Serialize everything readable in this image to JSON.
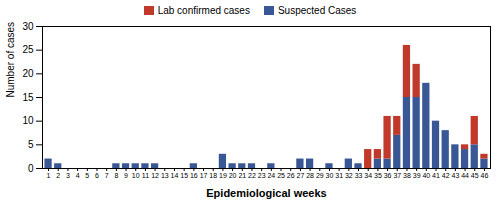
{
  "chart_data": {
    "type": "bar",
    "stacked": true,
    "xlabel": "Epidemiological weeks",
    "ylabel": "Number of cases",
    "categories": [
      "1",
      "2",
      "3",
      "4",
      "5",
      "6",
      "7",
      "8",
      "9",
      "10",
      "11",
      "12",
      "13",
      "14",
      "15",
      "16",
      "17",
      "18",
      "19",
      "20",
      "21",
      "22",
      "23",
      "24",
      "25",
      "26",
      "27",
      "28",
      "29",
      "30",
      "31",
      "32",
      "33",
      "34",
      "35",
      "36",
      "37",
      "38",
      "39",
      "40",
      "41",
      "42",
      "43",
      "44",
      "45",
      "46"
    ],
    "series": [
      {
        "name": "Suspected Cases",
        "color": "#3A5795",
        "values": [
          2,
          1,
          0,
          0,
          0,
          0,
          0,
          1,
          1,
          1,
          1,
          1,
          0,
          0,
          0,
          1,
          0,
          0,
          3,
          1,
          1,
          1,
          0,
          1,
          0,
          0,
          2,
          2,
          0,
          1,
          0,
          2,
          1,
          0,
          2,
          2,
          7,
          15,
          15,
          18,
          10,
          8,
          5,
          4,
          5,
          2
        ]
      },
      {
        "name": "Lab confirmed cases",
        "color": "#C0392B",
        "values": [
          0,
          0,
          0,
          0,
          0,
          0,
          0,
          0,
          0,
          0,
          0,
          0,
          0,
          0,
          0,
          0,
          0,
          0,
          0,
          0,
          0,
          0,
          0,
          0,
          0,
          0,
          0,
          0,
          0,
          0,
          0,
          0,
          0,
          4,
          2,
          9,
          4,
          11,
          7,
          0,
          0,
          0,
          0,
          1,
          6,
          1
        ]
      }
    ],
    "ylim": [
      0,
      30
    ],
    "yticks": [
      0,
      5,
      10,
      15,
      20,
      25,
      30
    ],
    "grid": false,
    "legend": "top"
  }
}
